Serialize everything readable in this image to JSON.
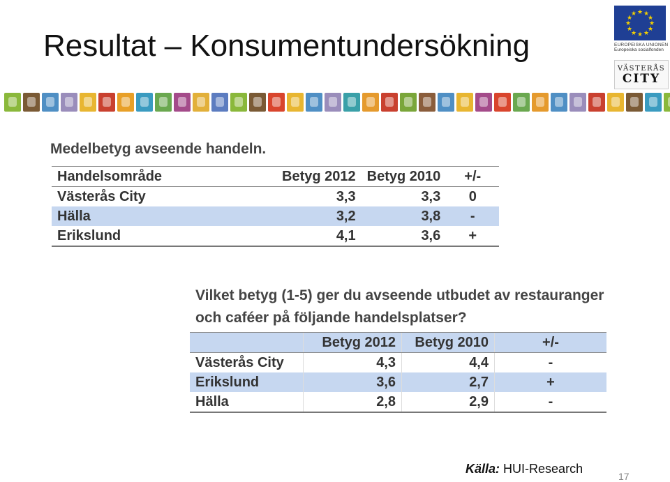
{
  "slide": {
    "title": "Resultat – Konsumentundersökning",
    "page_number": "17"
  },
  "logos": {
    "eu_line1": "EUROPEISKA UNIONEN",
    "eu_line2": "Europeiska socialfonden",
    "city_top": "VÄSTERÅS",
    "city_bottom": "CITY"
  },
  "band": {
    "colors": [
      "#8ab83b",
      "#7a5a35",
      "#4f8fc4",
      "#9a8dbb",
      "#e8b631",
      "#c9402f",
      "#e8a028",
      "#3a9bc0",
      "#6aa84f",
      "#a44b8a",
      "#e2b03a",
      "#5c7cc0",
      "#8ab83b",
      "#7a5a35",
      "#d9452d",
      "#e8b631",
      "#4f8fc4",
      "#9a8dbb",
      "#3aa0a8",
      "#e59a2d",
      "#c9402f",
      "#7aa63a",
      "#8a5d3b",
      "#4f8fc4",
      "#e8b631",
      "#a44b8a",
      "#d9452d",
      "#6aa84f",
      "#e59a2d",
      "#4f8fc4",
      "#9a8dbb",
      "#c9402f",
      "#e8b631",
      "#7a5a35",
      "#3a9bc0",
      "#8ab83b"
    ]
  },
  "table1": {
    "heading": "Medelbetyg avseende handeln.",
    "columns": [
      "Handelsområde",
      "Betyg 2012",
      "Betyg 2010",
      "+/-"
    ],
    "rows": [
      [
        "Västerås City",
        "3,3",
        "3,3",
        "0"
      ],
      [
        "Hälla",
        "3,2",
        "3,8",
        "-"
      ],
      [
        "Erikslund",
        "4,1",
        "3,6",
        "+"
      ]
    ]
  },
  "table2": {
    "heading": "Vilket betyg (1-5) ger du avseende utbudet av restauranger och caféer på följande handelsplatser?",
    "columns": [
      "",
      "Betyg 2012",
      "Betyg 2010",
      "+/-"
    ],
    "rows": [
      [
        "Västerås City",
        "4,3",
        "4,4",
        "-"
      ],
      [
        "Erikslund",
        "3,6",
        "2,7",
        "+"
      ],
      [
        "Hälla",
        "2,8",
        "2,9",
        "-"
      ]
    ]
  },
  "source": {
    "label": "Källa:",
    "value": "HUI-Research"
  }
}
